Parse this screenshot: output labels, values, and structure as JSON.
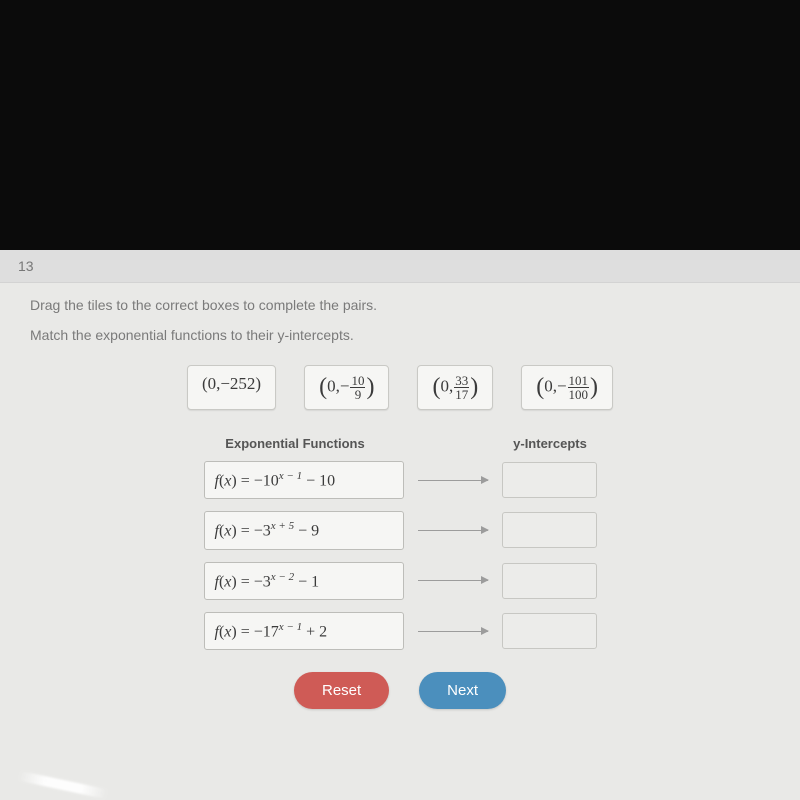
{
  "question_number": "13",
  "instruction": "Drag the tiles to the correct boxes to complete the pairs.",
  "sub_instruction": "Match the exponential functions to their y-intercepts.",
  "tiles": [
    {
      "type": "int",
      "value": "(0,−252)"
    },
    {
      "type": "frac",
      "sign": "−",
      "num": "10",
      "den": "9"
    },
    {
      "type": "frac",
      "sign": "",
      "num": "33",
      "den": "17"
    },
    {
      "type": "frac",
      "sign": "−",
      "num": "101",
      "den": "100"
    }
  ],
  "col_headers": {
    "left": "Exponential Functions",
    "right": "y-Intercepts"
  },
  "functions": [
    {
      "base": "−10",
      "exp": "x − 1",
      "tail": " − 10"
    },
    {
      "base": "−3",
      "exp": "x + 5",
      "tail": " − 9"
    },
    {
      "base": "−3",
      "exp": "x − 2",
      "tail": " − 1"
    },
    {
      "base": "−17",
      "exp": "x − 1",
      "tail": " + 2"
    }
  ],
  "buttons": {
    "reset": "Reset",
    "next": "Next"
  },
  "colors": {
    "reset": "#cf5b56",
    "next": "#4b8fbd"
  }
}
